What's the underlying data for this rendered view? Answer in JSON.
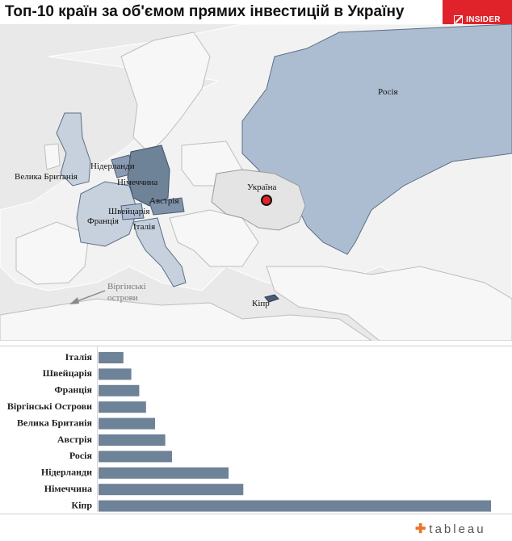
{
  "header": {
    "title": "Топ-10 країн за об'ємом прямих інвестицій в Україну",
    "logo_text": "INSIDER",
    "logo_color": "#e0232a"
  },
  "map": {
    "background_color": "#e9e9e9",
    "highlight_color": "#adbdd1",
    "labels": {
      "russia": "Росія",
      "ukraine": "Україна",
      "uk": "Велика Британія",
      "netherlands": "Нідерланди",
      "germany": "Німеччина",
      "switzerland": "Швейцарія",
      "austria": "Австрія",
      "france": "Франція",
      "italy": "Італія",
      "virgin_islands": "Віргінські острови",
      "cyprus": "Кіпр"
    }
  },
  "chart_data": {
    "type": "bar",
    "orientation": "horizontal",
    "categories": [
      "Італія",
      "Швейцарія",
      "Франція",
      "Віргінські Острови",
      "Велика Британія",
      "Австрія",
      "Росія",
      "Нідерланди",
      "Німеччина",
      "Кіпр"
    ],
    "values": [
      2.2,
      2.9,
      3.6,
      4.2,
      5.0,
      5.9,
      6.5,
      11.5,
      12.8,
      34.7
    ],
    "bar_color": "#6e8298"
  },
  "footer": {
    "tableau_text": "tableau"
  }
}
